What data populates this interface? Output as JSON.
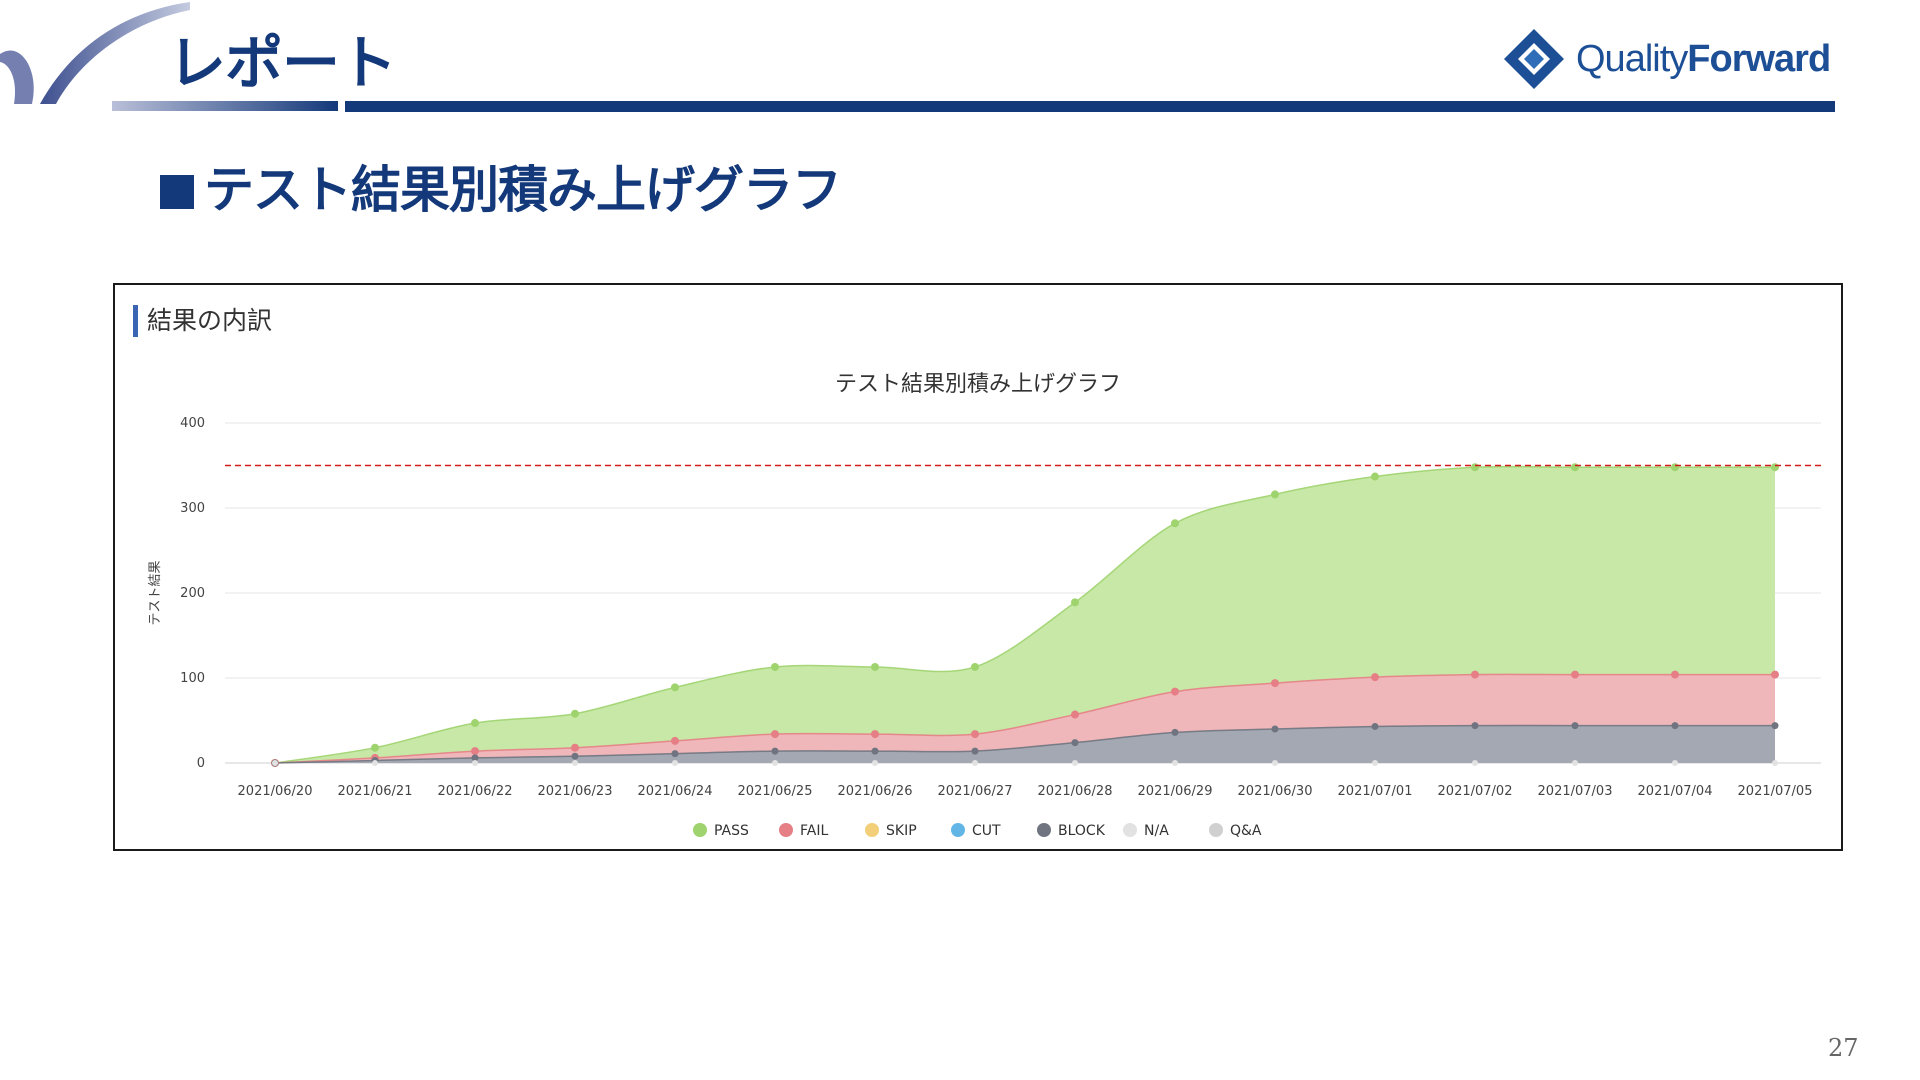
{
  "slide": {
    "title": "レポート",
    "section_heading": "テスト結果別積み上げグラフ",
    "page_number": "27"
  },
  "logo": {
    "text_light": "Quality",
    "text_bold": "Forward"
  },
  "panel": {
    "label": "結果の内訳"
  },
  "colors": {
    "brand": "#14397a",
    "pass": "#c7e8a6",
    "pass_line": "#9ed36e",
    "fail": "#efb7b9",
    "fail_line": "#e57f85",
    "skip": "#f3cf7a",
    "cut": "#61b6e6",
    "block": "#a3a8b2",
    "block_line": "#6f7480",
    "na": "#e2e2e2",
    "qa": "#d0d0d0",
    "target": "#d11c1c"
  },
  "icons": {
    "logo": "diamond-logo-icon",
    "swoosh": "corner-swoosh-decoration"
  },
  "chart_data": {
    "type": "area",
    "stacked": true,
    "title": "テスト結果別積み上げグラフ",
    "ylabel": "テスト結果",
    "xlabel": "",
    "ylim": [
      0,
      400
    ],
    "yticks": [
      0,
      100,
      200,
      300,
      400
    ],
    "grid": true,
    "legend_position": "bottom",
    "target_line": {
      "value": 350,
      "style": "dashed"
    },
    "categories": [
      "2021/06/20",
      "2021/06/21",
      "2021/06/22",
      "2021/06/23",
      "2021/06/24",
      "2021/06/25",
      "2021/06/26",
      "2021/06/27",
      "2021/06/28",
      "2021/06/29",
      "2021/06/30",
      "2021/07/01",
      "2021/07/02",
      "2021/07/03",
      "2021/07/04",
      "2021/07/05"
    ],
    "series": [
      {
        "name": "BLOCK",
        "values": [
          0,
          3,
          6,
          8,
          11,
          14,
          14,
          14,
          24,
          36,
          40,
          43,
          44,
          44,
          44,
          44
        ]
      },
      {
        "name": "FAIL",
        "values": [
          0,
          3,
          8,
          10,
          15,
          20,
          20,
          20,
          33,
          48,
          54,
          58,
          60,
          60,
          60,
          60
        ]
      },
      {
        "name": "PASS",
        "values": [
          0,
          12,
          33,
          40,
          63,
          79,
          79,
          79,
          132,
          198,
          222,
          236,
          244,
          244,
          244,
          244
        ]
      },
      {
        "name": "SKIP",
        "values": [
          0,
          0,
          0,
          0,
          0,
          0,
          0,
          0,
          0,
          0,
          0,
          0,
          0,
          0,
          0,
          0
        ]
      },
      {
        "name": "CUT",
        "values": [
          0,
          0,
          0,
          0,
          0,
          0,
          0,
          0,
          0,
          0,
          0,
          0,
          0,
          0,
          0,
          0
        ]
      },
      {
        "name": "N/A",
        "values": [
          0,
          0,
          0,
          0,
          0,
          0,
          0,
          0,
          0,
          0,
          0,
          0,
          0,
          0,
          0,
          0
        ]
      },
      {
        "name": "Q&A",
        "values": [
          0,
          0,
          0,
          0,
          0,
          0,
          0,
          0,
          0,
          0,
          0,
          0,
          0,
          0,
          0,
          0
        ]
      }
    ],
    "legend": [
      "PASS",
      "FAIL",
      "SKIP",
      "CUT",
      "BLOCK",
      "N/A",
      "Q&A"
    ]
  }
}
